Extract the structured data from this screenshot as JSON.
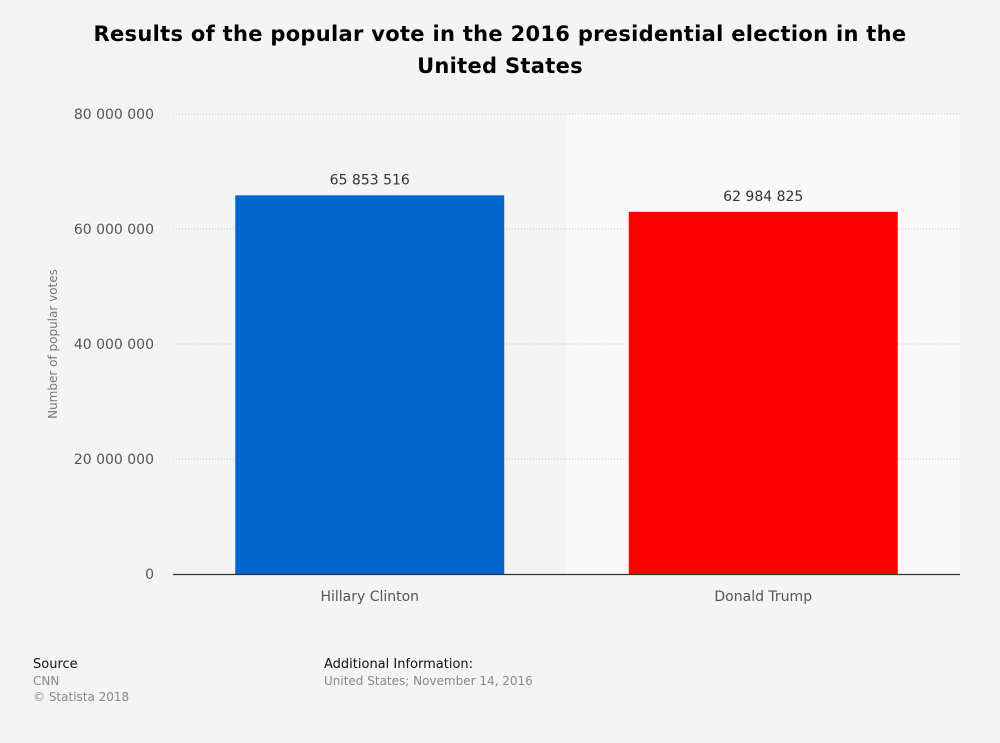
{
  "chart_data": {
    "type": "bar",
    "title": "Results of the popular vote in the 2016 presidential election in the United States",
    "categories": [
      "Hillary Clinton",
      "Donald Trump"
    ],
    "values": [
      65853516,
      62984825
    ],
    "value_labels": [
      "65 853 516",
      "62 984 825"
    ],
    "colors": [
      "#0066cc",
      "#ff0000"
    ],
    "xlabel": "",
    "ylabel": "Number of popular votes",
    "ylim": [
      0,
      80000000
    ],
    "yticks": [
      0,
      20000000,
      40000000,
      60000000,
      80000000
    ],
    "ytick_labels": [
      "0",
      "20 000 000",
      "40 000 000",
      "60 000 000",
      "80 000 000"
    ],
    "grid": true
  },
  "footer": {
    "source_heading": "Source",
    "source_name": "CNN",
    "copyright": "© Statista 2018",
    "additional_heading": "Additional Information:",
    "additional_text": "United States; November 14, 2016"
  }
}
